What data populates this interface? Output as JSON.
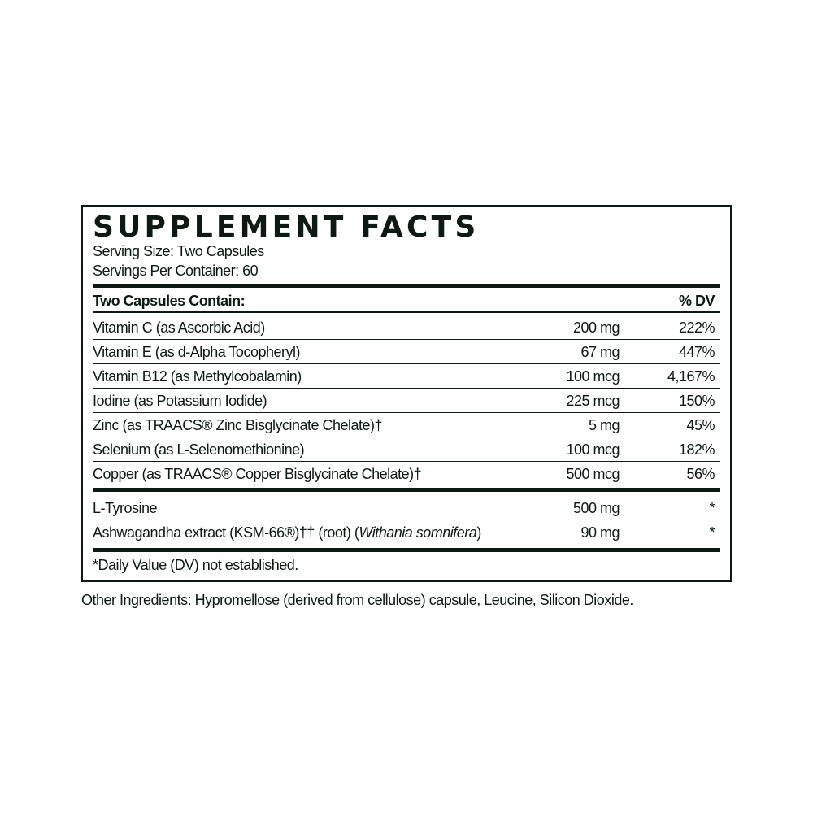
{
  "title": "SUPPLEMENT FACTS",
  "serving_size": "Serving Size: Two Capsules",
  "servings_per_container": "Servings Per Container: 60",
  "header": {
    "contain": "Two Capsules Contain:",
    "dv": "% DV"
  },
  "vitamins": [
    {
      "name": "Vitamin C (as Ascorbic Acid)",
      "amount": "200 mg",
      "dv": "222%"
    },
    {
      "name": "Vitamin E (as d-Alpha Tocopheryl)",
      "amount": "67 mg",
      "dv": "447%"
    },
    {
      "name": "Vitamin B12 (as Methylcobalamin)",
      "amount": "100 mcg",
      "dv": "4,167%"
    },
    {
      "name": "Iodine (as Potassium Iodide)",
      "amount": "225 mcg",
      "dv": "150%"
    },
    {
      "name": "Zinc (as TRAACS® Zinc Bisglycinate Chelate)†",
      "amount": "5 mg",
      "dv": "45%"
    },
    {
      "name": "Selenium (as L-Selenomethionine)",
      "amount": "100 mcg",
      "dv": "182%"
    },
    {
      "name": "Copper (as TRAACS® Copper Bisglycinate Chelate)†",
      "amount": "500 mcg",
      "dv": "56%"
    }
  ],
  "others": [
    {
      "name": "L-Tyrosine",
      "amount": "500 mg",
      "dv": "*"
    },
    {
      "name": "Ashwagandha extract (KSM-66®)†† (root) (",
      "name_italic": "Withania somnifera",
      "name_end": ")",
      "amount": "90 mg",
      "dv": "*"
    }
  ],
  "footnote": "*Daily Value (DV) not established.",
  "other_ingredients": "Other Ingredients: Hypromellose (derived from cellulose) capsule, Leucine, Silicon Dioxide."
}
